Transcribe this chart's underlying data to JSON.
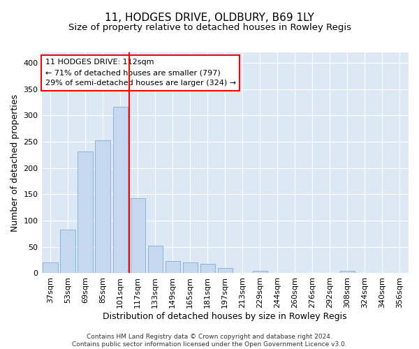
{
  "title": "11, HODGES DRIVE, OLDBURY, B69 1LY",
  "subtitle": "Size of property relative to detached houses in Rowley Regis",
  "xlabel": "Distribution of detached houses by size in Rowley Regis",
  "ylabel": "Number of detached properties",
  "footer_line1": "Contains HM Land Registry data © Crown copyright and database right 2024.",
  "footer_line2": "Contains public sector information licensed under the Open Government Licence v3.0.",
  "bins": [
    "37sqm",
    "53sqm",
    "69sqm",
    "85sqm",
    "101sqm",
    "117sqm",
    "133sqm",
    "149sqm",
    "165sqm",
    "181sqm",
    "197sqm",
    "213sqm",
    "229sqm",
    "244sqm",
    "260sqm",
    "276sqm",
    "292sqm",
    "308sqm",
    "324sqm",
    "340sqm",
    "356sqm"
  ],
  "bar_values": [
    20,
    83,
    232,
    253,
    317,
    143,
    52,
    23,
    20,
    18,
    10,
    0,
    5,
    0,
    0,
    0,
    0,
    5,
    0,
    0,
    0
  ],
  "bar_color": "#c5d8f0",
  "bar_edge_color": "#7aadd4",
  "property_line_color": "red",
  "property_line_bin": 4,
  "annotation_text": "11 HODGES DRIVE: 112sqm\n← 71% of detached houses are smaller (797)\n29% of semi-detached houses are larger (324) →",
  "annotation_box_color": "white",
  "annotation_box_edge_color": "red",
  "ylim": [
    0,
    420
  ],
  "yticks": [
    0,
    50,
    100,
    150,
    200,
    250,
    300,
    350,
    400
  ],
  "background_color": "#dde8f5",
  "grid_color": "white",
  "title_fontsize": 11,
  "subtitle_fontsize": 9.5,
  "xlabel_fontsize": 9,
  "ylabel_fontsize": 9,
  "tick_fontsize": 8,
  "annot_fontsize": 8,
  "footer_fontsize": 6.5,
  "bar_width": 0.85
}
